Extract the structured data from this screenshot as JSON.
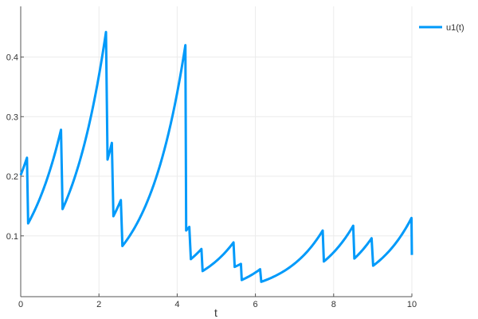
{
  "chart_data": {
    "type": "line",
    "title": "",
    "xlabel": "t",
    "ylabel": "",
    "xlim": [
      0,
      10
    ],
    "ylim": [
      -0.002,
      0.485
    ],
    "xticks": [
      0,
      2,
      4,
      6,
      8,
      10
    ],
    "xtick_labels": [
      "0",
      "2",
      "4",
      "6",
      "8",
      "10"
    ],
    "yticks": [
      0.1,
      0.2,
      0.3,
      0.4
    ],
    "ytick_labels": [
      "0.1",
      "0.2",
      "0.3",
      "0.4"
    ],
    "grid": true,
    "legend_position": "top-right",
    "series": [
      {
        "name": "u1(t)",
        "color": "#009AFA",
        "x": [
          0.0,
          0.16,
          0.19,
          1.03,
          1.07,
          2.18,
          2.22,
          2.33,
          2.37,
          2.56,
          2.6,
          4.21,
          4.23,
          4.31,
          4.35,
          4.62,
          4.65,
          5.44,
          5.47,
          5.63,
          5.65,
          6.12,
          6.15,
          7.72,
          7.75,
          8.5,
          8.53,
          8.97,
          9.01,
          9.99,
          10.0
        ],
        "y": [
          0.202,
          0.231,
          0.121,
          0.278,
          0.145,
          0.442,
          0.228,
          0.256,
          0.133,
          0.16,
          0.083,
          0.42,
          0.109,
          0.115,
          0.061,
          0.078,
          0.041,
          0.089,
          0.048,
          0.053,
          0.026,
          0.044,
          0.023,
          0.109,
          0.057,
          0.117,
          0.062,
          0.096,
          0.05,
          0.13,
          0.068
        ]
      }
    ]
  }
}
